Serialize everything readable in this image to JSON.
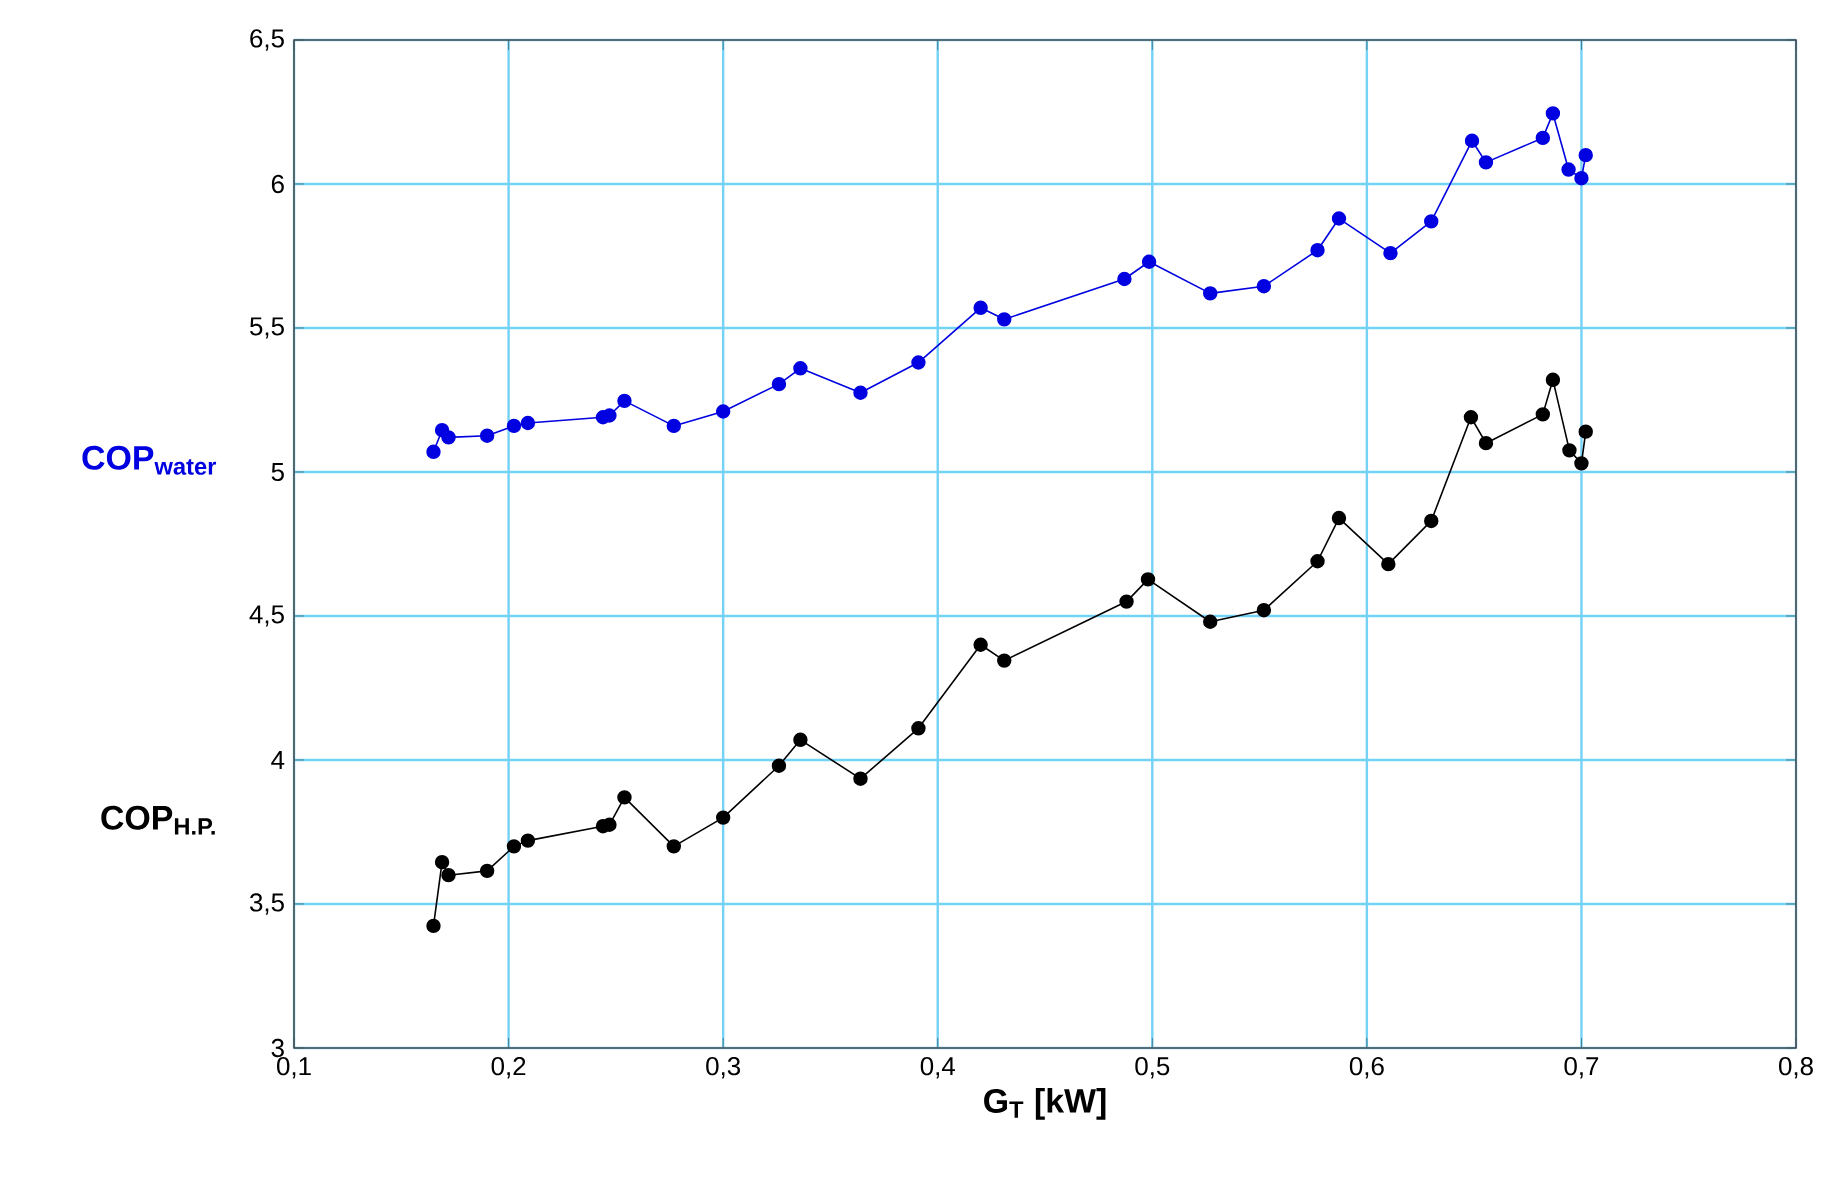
{
  "chart_data": {
    "type": "line",
    "xlabel": "G$_{T}$  [kW]",
    "xlim": [
      0.1,
      0.8
    ],
    "xticks": [
      {
        "value": 0.1,
        "label": "0,1"
      },
      {
        "value": 0.2,
        "label": "0,2"
      },
      {
        "value": 0.3,
        "label": "0,3"
      },
      {
        "value": 0.4,
        "label": "0,4"
      },
      {
        "value": 0.5,
        "label": "0,5"
      },
      {
        "value": 0.6,
        "label": "0,6"
      },
      {
        "value": 0.7,
        "label": "0,7"
      },
      {
        "value": 0.8,
        "label": "0,8"
      }
    ],
    "ylim": [
      3,
      6.5
    ],
    "yticks": [
      3,
      {
        "value": 3.5,
        "label": "3,5"
      },
      4,
      {
        "value": 4.5,
        "label": "4,5"
      },
      5,
      {
        "value": 5.5,
        "label": "5,5"
      },
      6,
      {
        "value": 6.5,
        "label": "6,5"
      }
    ],
    "grid": true,
    "marker": "circle",
    "legend": false,
    "series": [
      {
        "name": "COP$_{water}$",
        "color": "#0000e0",
        "x": [
          0.165,
          0.169,
          0.172,
          0.19,
          0.2025,
          0.209,
          0.244,
          0.247,
          0.254,
          0.277,
          0.3,
          0.326,
          0.336,
          0.364,
          0.391,
          0.42,
          0.431,
          0.487,
          0.4985,
          0.527,
          0.552,
          0.577,
          0.587,
          0.611,
          0.63,
          0.649,
          0.6555,
          0.682,
          0.6867,
          0.694,
          0.7,
          0.702
        ],
        "values": [
          5.07,
          5.145,
          5.12,
          5.126,
          5.16,
          5.17,
          5.19,
          5.196,
          5.247,
          5.16,
          5.21,
          5.305,
          5.36,
          5.275,
          5.38,
          5.57,
          5.53,
          5.67,
          5.73,
          5.62,
          5.645,
          5.77,
          5.88,
          5.76,
          5.87,
          6.15,
          6.075,
          6.16,
          6.245,
          6.05,
          6.02,
          6.1
        ]
      },
      {
        "name": "COP$_{H.P.}$",
        "color": "#000000",
        "x": [
          0.165,
          0.169,
          0.172,
          0.19,
          0.2025,
          0.209,
          0.244,
          0.247,
          0.254,
          0.277,
          0.3,
          0.326,
          0.336,
          0.364,
          0.391,
          0.42,
          0.431,
          0.488,
          0.498,
          0.527,
          0.552,
          0.577,
          0.587,
          0.61,
          0.63,
          0.6485,
          0.6555,
          0.682,
          0.6867,
          0.6944,
          0.7,
          0.702
        ],
        "values": [
          3.424,
          3.645,
          3.6,
          3.615,
          3.7,
          3.72,
          3.77,
          3.775,
          3.87,
          3.7,
          3.8,
          3.98,
          4.07,
          3.935,
          4.11,
          4.4,
          4.345,
          4.55,
          4.627,
          4.48,
          4.52,
          4.69,
          4.84,
          4.68,
          4.83,
          5.19,
          5.1,
          5.2,
          5.32,
          5.075,
          5.03,
          5.14
        ]
      }
    ]
  }
}
